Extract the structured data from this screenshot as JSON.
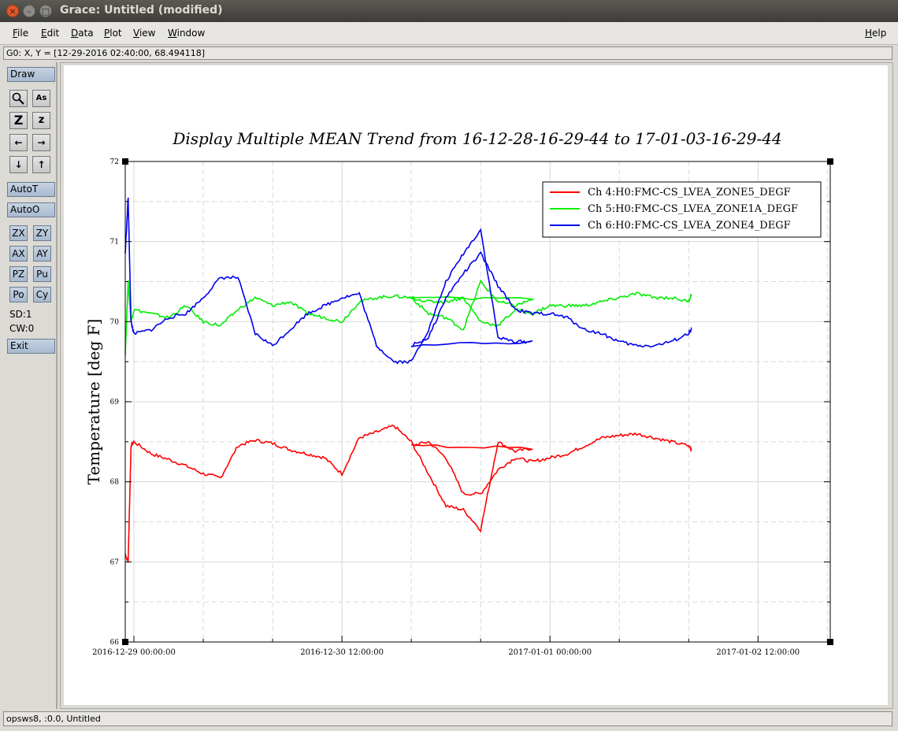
{
  "window": {
    "title": "Grace: Untitled (modified)",
    "close": "×",
    "minimize": "–",
    "maximize": "□"
  },
  "menu": {
    "file": "File",
    "edit": "Edit",
    "data": "Data",
    "plot": "Plot",
    "view": "View",
    "window": "Window",
    "help": "Help"
  },
  "locator": "G0: X, Y = [12-29-2016 02:40:00, 68.494118]",
  "toolbar": {
    "draw": "Draw",
    "zoom_icon": "magnifier-icon",
    "text_icon": "As",
    "autoT": "AutoT",
    "autoO": "AutoO",
    "zx": "ZX",
    "zy": "ZY",
    "ax": "AX",
    "ay": "AY",
    "pz": "PZ",
    "pu": "Pu",
    "po": "Po",
    "cy": "Cy",
    "sd": "SD:1",
    "cw": "CW:0",
    "exit": "Exit"
  },
  "status": "opsws8, :0.0, Untitled",
  "chart_data": {
    "type": "line",
    "title": "Display Multiple MEAN Trend from 16-12-28-16-29-44 to 17-01-03-16-29-44",
    "xlabel": "",
    "ylabel": "Temperature [deg F]",
    "ylim": [
      66,
      72
    ],
    "yticks": [
      "66",
      "67",
      "68",
      "69",
      "70",
      "71",
      "72"
    ],
    "xlim": [
      "2016-12-28 22:30",
      "2017-01-03 00:30"
    ],
    "xtick_labels": [
      "2016-12-29 00:00:00",
      "2016-12-30 12:00:00",
      "2017-01-01 00:00:00",
      "2017-01-02 12:00:00"
    ],
    "grid": true,
    "legend_position": "top-right",
    "x": [
      "12-28 22:30",
      "12-28 23:00",
      "12-28 23:30",
      "12-29 00:00",
      "12-29 03:00",
      "12-29 06:00",
      "12-29 09:00",
      "12-29 12:00",
      "12-29 15:00",
      "12-29 18:00",
      "12-29 21:00",
      "12-30 00:00",
      "12-30 03:00",
      "12-30 06:00",
      "12-30 09:00",
      "12-30 12:00",
      "12-30 15:00",
      "12-30 18:00",
      "12-30 21:00",
      "12-31 00:00",
      "12-31 03:00",
      "12-31 06:00",
      "12-31 09:00",
      "12-31 12:00",
      "12-31 15:00",
      "12-31 18:00",
      "12-31 21:00",
      "01-01 00:00",
      "01-01 03:00",
      "01-01 06:00",
      "01-01 09:00",
      "01-01 12:00",
      "01-01 15:00",
      "01-01 18:00",
      "01-01 21:00",
      "01-02 00:00",
      "01-02 03:00",
      "01-02 06:00",
      "01-02 09:00",
      "01-02 12:00",
      "01-02 15:00",
      "01-02 18:00",
      "01-02 21:00",
      "01-03 00:00",
      "01-03 00:30"
    ],
    "series": [
      {
        "name": "Ch 4:H0:FMC-CS_LVEA_ZONE5_DEGF",
        "color": "#ff0000",
        "values": [
          67.1,
          67.0,
          68.45,
          68.5,
          68.35,
          68.28,
          68.2,
          68.1,
          68.05,
          68.45,
          68.52,
          68.48,
          68.4,
          68.35,
          68.3,
          68.1,
          68.55,
          68.62,
          68.7,
          68.5,
          68.1,
          67.7,
          67.65,
          67.4,
          68.5,
          68.38,
          68.42,
          68.45,
          68.5,
          68.3,
          67.85,
          67.85,
          68.15,
          68.3,
          68.25,
          68.3,
          68.35,
          68.45,
          68.55,
          68.58,
          68.6,
          68.55,
          68.5,
          68.45,
          68.4
        ]
      },
      {
        "name": "Ch 5:H0:FMC-CS_LVEA_ZONE1A_DEGF",
        "color": "#00ee00",
        "values": [
          69.6,
          70.5,
          70.0,
          70.15,
          70.1,
          70.05,
          70.2,
          70.0,
          69.95,
          70.15,
          70.3,
          70.2,
          70.25,
          70.1,
          70.05,
          70.0,
          70.25,
          70.3,
          70.32,
          70.3,
          70.1,
          70.05,
          69.9,
          70.5,
          70.25,
          70.2,
          70.28,
          70.3,
          70.25,
          70.25,
          70.3,
          70.0,
          69.95,
          70.15,
          70.1,
          70.2,
          70.2,
          70.2,
          70.25,
          70.3,
          70.35,
          70.3,
          70.3,
          70.25,
          70.35
        ]
      },
      {
        "name": "Ch 6:H0:FMC-CS_LVEA_ZONE4_DEGF",
        "color": "#0000ee",
        "values": [
          70.85,
          71.55,
          70.0,
          69.85,
          69.9,
          70.05,
          70.1,
          70.3,
          70.55,
          70.55,
          69.85,
          69.7,
          69.9,
          70.1,
          70.2,
          70.3,
          70.35,
          69.7,
          69.5,
          69.5,
          69.9,
          70.5,
          70.85,
          71.15,
          69.8,
          69.75,
          69.75,
          69.7,
          69.8,
          70.3,
          70.6,
          70.85,
          70.45,
          70.15,
          70.1,
          70.1,
          70.05,
          69.9,
          69.85,
          69.75,
          69.7,
          69.7,
          69.75,
          69.85,
          69.9
        ]
      }
    ]
  }
}
